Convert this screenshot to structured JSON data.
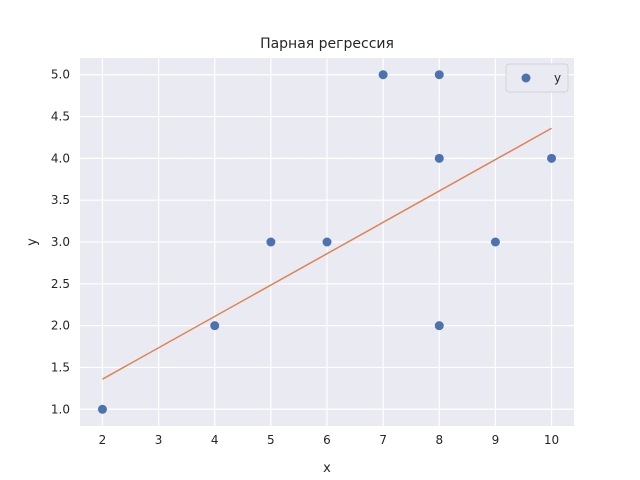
{
  "chart_data": {
    "type": "scatter",
    "title": "Парная регрессия",
    "xlabel": "x",
    "ylabel": "y",
    "xlim": [
      1.6,
      10.4
    ],
    "ylim": [
      0.8,
      5.2
    ],
    "xticks": [
      2,
      3,
      4,
      5,
      6,
      7,
      8,
      9,
      10
    ],
    "yticks": [
      1.0,
      1.5,
      2.0,
      2.5,
      3.0,
      3.5,
      4.0,
      4.5,
      5.0
    ],
    "ytick_labels": [
      "1.0",
      "1.5",
      "2.0",
      "2.5",
      "3.0",
      "3.5",
      "4.0",
      "4.5",
      "5.0"
    ],
    "grid": true,
    "legend_position": "top-right",
    "series": [
      {
        "name": "y",
        "kind": "scatter",
        "color": "#4C72B0",
        "x": [
          2,
          4,
          5,
          6,
          7,
          8,
          8,
          8,
          9,
          10
        ],
        "y": [
          1,
          2,
          3,
          3,
          5,
          5,
          4,
          2,
          3,
          4
        ]
      },
      {
        "kind": "line",
        "color": "#DD8452",
        "x": [
          2,
          10
        ],
        "y": [
          1.36,
          4.36
        ]
      }
    ]
  }
}
